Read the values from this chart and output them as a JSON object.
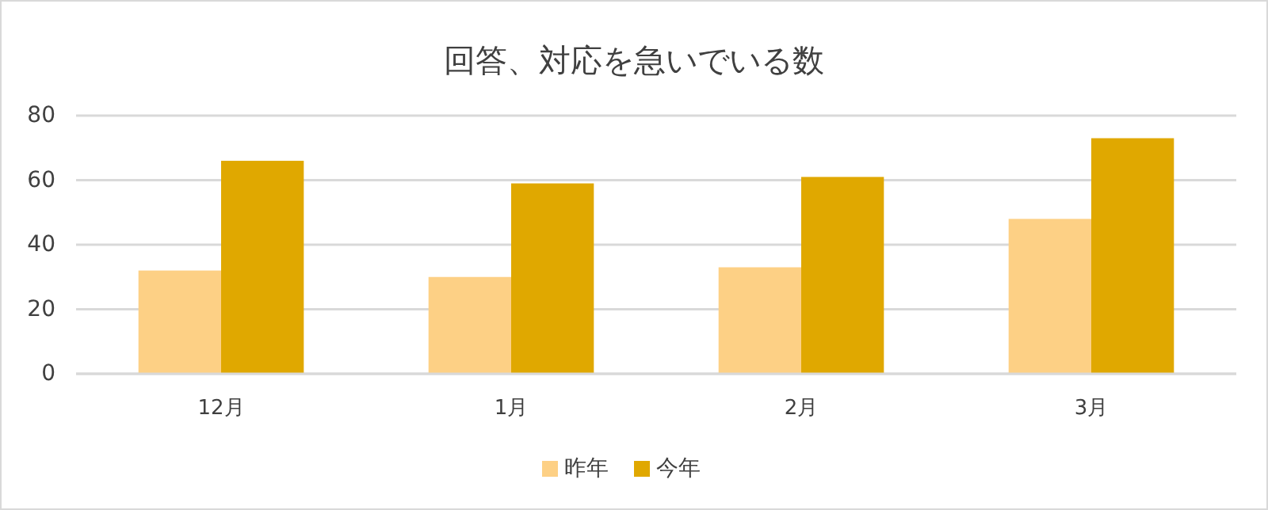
{
  "chart_data": {
    "type": "bar",
    "title": "回答、対応を急いでいる数",
    "categories": [
      "12月",
      "1月",
      "2月",
      "3月"
    ],
    "series": [
      {
        "name": "昨年",
        "color": "#fdd085",
        "values": [
          32,
          30,
          33,
          48
        ]
      },
      {
        "name": "今年",
        "color": "#e0a800",
        "values": [
          66,
          59,
          61,
          73
        ]
      }
    ],
    "ylim": [
      0,
      80
    ],
    "yticks": [
      0,
      20,
      40,
      60,
      80
    ],
    "grid": "y",
    "legend": "bottom"
  }
}
